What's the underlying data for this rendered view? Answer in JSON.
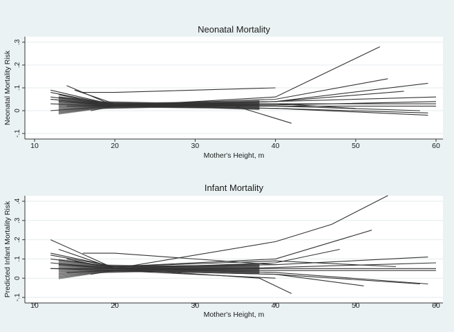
{
  "chart_data": [
    {
      "type": "line",
      "title": "Neonatal Mortality",
      "xlabel": "Mother's Height, m",
      "ylabel": "Neonatal Mortality Risk",
      "xlim": [
        10,
        60
      ],
      "ylim": [
        -0.1,
        0.3
      ],
      "xticks": [
        "10",
        "20",
        "30",
        "40",
        "50",
        "60"
      ],
      "yticks": [
        "-.1",
        "0",
        ".1",
        ".2",
        ".3"
      ],
      "grid": true,
      "series": [
        {
          "x": [
            12,
            20,
            35,
            42
          ],
          "y": [
            0.09,
            0.025,
            0.02,
            -0.055
          ]
        },
        {
          "x": [
            13,
            20,
            40,
            53
          ],
          "y": [
            0.07,
            0.02,
            0.06,
            0.28
          ]
        },
        {
          "x": [
            12,
            20,
            40,
            54
          ],
          "y": [
            0.08,
            0.025,
            0.05,
            0.14
          ]
        },
        {
          "x": [
            14,
            20,
            40,
            59
          ],
          "y": [
            0.11,
            0.02,
            0.04,
            0.12
          ]
        },
        {
          "x": [
            12,
            20,
            40,
            56
          ],
          "y": [
            0.06,
            0.025,
            0.04,
            0.085
          ]
        },
        {
          "x": [
            15,
            20,
            35,
            60
          ],
          "y": [
            0.09,
            0.03,
            0.035,
            0.06
          ]
        },
        {
          "x": [
            12,
            20,
            40,
            60
          ],
          "y": [
            0.05,
            0.02,
            0.025,
            0.04
          ]
        },
        {
          "x": [
            13,
            20,
            40,
            60
          ],
          "y": [
            0.04,
            0.02,
            0.02,
            0.02
          ]
        },
        {
          "x": [
            12,
            20,
            40,
            59
          ],
          "y": [
            0.03,
            0.02,
            0.01,
            -0.01
          ]
        },
        {
          "x": [
            14,
            20,
            40,
            59
          ],
          "y": [
            0.02,
            0.02,
            0.01,
            -0.02
          ]
        },
        {
          "x": [
            12,
            20,
            40,
            58
          ],
          "y": [
            0.0,
            0.02,
            0.02,
            0.0
          ]
        },
        {
          "x": [
            13,
            20,
            40,
            60
          ],
          "y": [
            0.06,
            0.03,
            0.03,
            0.03
          ]
        },
        {
          "x": [
            16,
            20,
            40
          ],
          "y": [
            0.08,
            0.08,
            0.1
          ]
        },
        {
          "x": [
            17,
            20,
            40
          ],
          "y": [
            0.0,
            0.02,
            0.03
          ]
        },
        {
          "x": [
            12,
            20,
            40,
            50
          ],
          "y": [
            0.05,
            0.025,
            0.03,
            0.01
          ]
        }
      ]
    },
    {
      "type": "line",
      "title": "Infant Mortality",
      "xlabel": "Mother's Height, m",
      "ylabel": "Predicted Infant Mortality Risk",
      "xlim": [
        10,
        60
      ],
      "ylim": [
        -0.1,
        0.4
      ],
      "xticks": [
        "10",
        "20",
        "30",
        "40",
        "50",
        "60"
      ],
      "yticks": [
        "-.1",
        "0",
        ".1",
        ".2",
        ".3",
        ".4"
      ],
      "grid": true,
      "series": [
        {
          "x": [
            12,
            20,
            38,
            42
          ],
          "y": [
            0.2,
            0.05,
            0.0,
            -0.08
          ]
        },
        {
          "x": [
            13,
            20,
            40,
            47,
            54
          ],
          "y": [
            0.15,
            0.05,
            0.19,
            0.28,
            0.43
          ]
        },
        {
          "x": [
            12,
            20,
            40,
            52
          ],
          "y": [
            0.13,
            0.06,
            0.1,
            0.25
          ]
        },
        {
          "x": [
            14,
            20,
            40,
            48
          ],
          "y": [
            0.1,
            0.05,
            0.08,
            0.15
          ]
        },
        {
          "x": [
            12,
            20,
            40,
            59
          ],
          "y": [
            0.12,
            0.06,
            0.07,
            0.11
          ]
        },
        {
          "x": [
            15,
            20,
            35,
            60
          ],
          "y": [
            0.09,
            0.05,
            0.05,
            0.08
          ]
        },
        {
          "x": [
            12,
            20,
            40,
            60
          ],
          "y": [
            0.08,
            0.05,
            0.05,
            0.05
          ]
        },
        {
          "x": [
            13,
            20,
            40,
            60
          ],
          "y": [
            0.07,
            0.05,
            0.04,
            0.04
          ]
        },
        {
          "x": [
            12,
            20,
            40,
            59
          ],
          "y": [
            0.05,
            0.05,
            0.03,
            -0.03
          ]
        },
        {
          "x": [
            14,
            20,
            40,
            58
          ],
          "y": [
            0.03,
            0.04,
            0.02,
            -0.03
          ]
        },
        {
          "x": [
            12,
            20,
            40,
            51
          ],
          "y": [
            0.05,
            0.04,
            0.02,
            -0.04
          ]
        },
        {
          "x": [
            16,
            20,
            40
          ],
          "y": [
            0.13,
            0.13,
            0.07
          ]
        },
        {
          "x": [
            17,
            20,
            40
          ],
          "y": [
            0.02,
            0.04,
            0.0
          ]
        },
        {
          "x": [
            12,
            20,
            40,
            55
          ],
          "y": [
            0.1,
            0.06,
            0.09,
            0.06
          ]
        }
      ]
    }
  ]
}
